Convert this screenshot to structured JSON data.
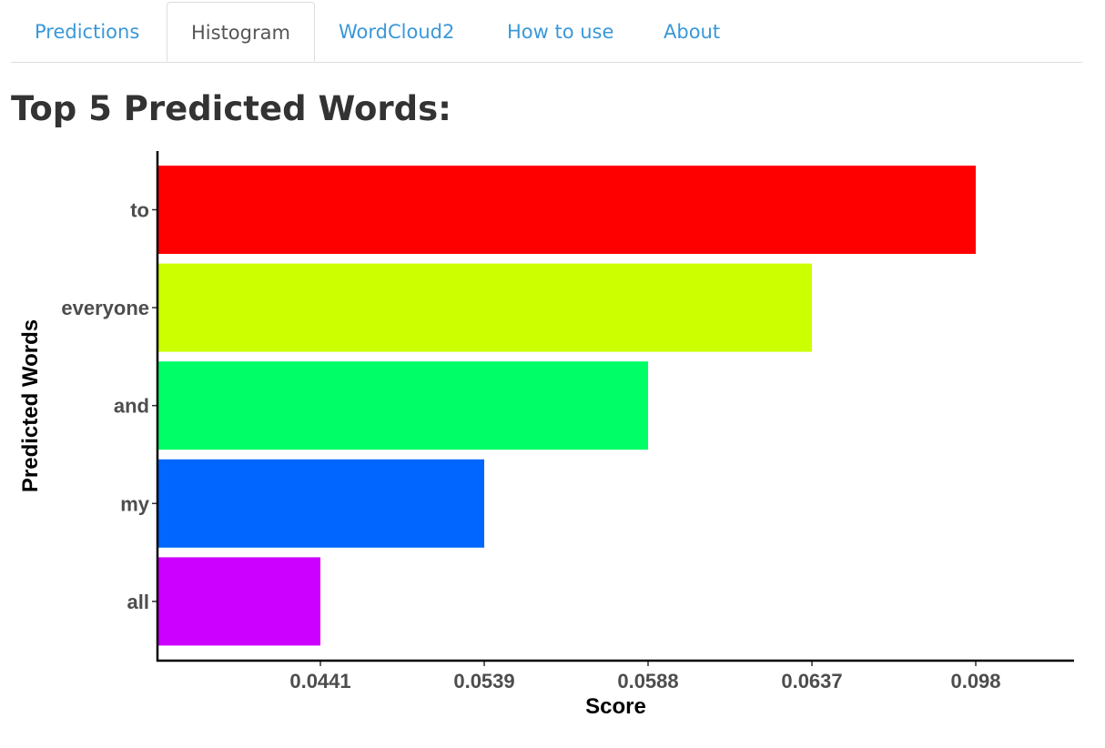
{
  "nav": {
    "tabs": [
      {
        "label": "Predictions",
        "active": false
      },
      {
        "label": "Histogram",
        "active": true
      },
      {
        "label": "WordCloud2",
        "active": false
      },
      {
        "label": "How to use",
        "active": false
      },
      {
        "label": "About",
        "active": false
      }
    ]
  },
  "page": {
    "title": "Top 5 Predicted Words:"
  },
  "chart_data": {
    "type": "bar",
    "orientation": "horizontal",
    "categories": [
      "to",
      "everyone",
      "and",
      "my",
      "all"
    ],
    "values": [
      0.098,
      0.0637,
      0.0588,
      0.0539,
      0.0441
    ],
    "colors": [
      "#FF0000",
      "#CCFF00",
      "#00FF66",
      "#0066FF",
      "#CC00FF"
    ],
    "x_tick_labels": [
      "0.0441",
      "0.0539",
      "0.0588",
      "0.0637",
      "0.098"
    ],
    "xlabel": "Score",
    "ylabel": "Predicted Words",
    "grid": false,
    "legend": "none",
    "note": "The score axis is ordinal: each score sits at its rank, so bar length reflects rank order."
  }
}
